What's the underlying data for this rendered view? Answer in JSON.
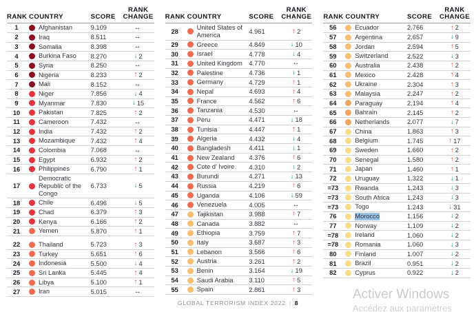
{
  "table": {
    "headers": {
      "rank": "RANK",
      "country": "COUNTRY",
      "score": "SCORE",
      "rank_change": "RANK CHANGE"
    }
  },
  "arrows": {
    "up": {
      "glyph": "↑",
      "color": "#e8392f"
    },
    "down": {
      "glyph": "↓",
      "color": "#00857c"
    },
    "same": {
      "glyph": "↔",
      "color": "#1a1a1a"
    }
  },
  "colors": {
    "tiers": {
      "t1": "#8a0e22",
      "t2": "#e43440",
      "t3": "#ef6a4f",
      "t4": "#f6be72",
      "t5": "#f0a55f",
      "t6": "#f8dd86"
    },
    "selection": "#9cc3e5"
  },
  "columns": [
    {
      "rows": [
        {
          "rank": "1",
          "country": "Afghanistan",
          "score": "9.109",
          "dir": "same",
          "change": "",
          "tier": "t1"
        },
        {
          "rank": "2",
          "country": "Iraq",
          "score": "8.511",
          "dir": "same",
          "change": "",
          "tier": "t1"
        },
        {
          "rank": "3",
          "country": "Somalia",
          "score": "8.398",
          "dir": "same",
          "change": "",
          "tier": "t1"
        },
        {
          "rank": "4",
          "country": "Burkina Faso",
          "score": "8.270",
          "dir": "down",
          "change": "2",
          "tier": "t1"
        },
        {
          "rank": "5",
          "country": "Syria",
          "score": "8.250",
          "dir": "same",
          "change": "",
          "tier": "t1"
        },
        {
          "rank": "6",
          "country": "Nigeria",
          "score": "8.233",
          "dir": "up",
          "change": "2",
          "tier": "t1"
        },
        {
          "rank": "7",
          "country": "Mali",
          "score": "8.152",
          "dir": "same",
          "change": "",
          "tier": "t1"
        },
        {
          "rank": "8",
          "country": "Niger",
          "score": "7.856",
          "dir": "down",
          "change": "4",
          "tier": "t2"
        },
        {
          "rank": "9",
          "country": "Myanmar",
          "score": "7.830",
          "dir": "down",
          "change": "15",
          "tier": "t2"
        },
        {
          "rank": "10",
          "country": "Pakistan",
          "score": "7.825",
          "dir": "up",
          "change": "2",
          "tier": "t2"
        },
        {
          "rank": "11",
          "country": "Cameroon",
          "score": "7.432",
          "dir": "same",
          "change": "",
          "tier": "t2"
        },
        {
          "rank": "12",
          "country": "India",
          "score": "7.432",
          "dir": "up",
          "change": "2",
          "tier": "t2"
        },
        {
          "rank": "13",
          "country": "Mozambique",
          "score": "7.432",
          "dir": "up",
          "change": "4",
          "tier": "t2"
        },
        {
          "rank": "14",
          "country": "Colombia",
          "score": "7.068",
          "dir": "same",
          "change": "",
          "tier": "t2"
        },
        {
          "rank": "15",
          "country": "Egypt",
          "score": "6.932",
          "dir": "up",
          "change": "2",
          "tier": "t2"
        },
        {
          "rank": "16",
          "country": "Philippines",
          "score": "6.790",
          "dir": "up",
          "change": "1",
          "tier": "t2"
        },
        {
          "rank": "17",
          "country": "Democratic Republic of the Congo",
          "score": "6.733",
          "dir": "down",
          "change": "5",
          "tier": "t2"
        },
        {
          "rank": "18",
          "country": "Chile",
          "score": "6.496",
          "dir": "down",
          "change": "5",
          "tier": "t2"
        },
        {
          "rank": "19",
          "country": "Chad",
          "score": "6.379",
          "dir": "up",
          "change": "3",
          "tier": "t2"
        },
        {
          "rank": "20",
          "country": "Kenya",
          "score": "6.166",
          "dir": "up",
          "change": "2",
          "tier": "t2"
        },
        {
          "rank": "21",
          "country": "Yemen",
          "score": "5.870",
          "dir": "up",
          "change": "1",
          "tier": "t3"
        },
        {
          "rank": "22",
          "country": "Thailand",
          "score": "5.723",
          "dir": "up",
          "change": "3",
          "tier": "t3",
          "gap": true
        },
        {
          "rank": "23",
          "country": "Turkey",
          "score": "5.651",
          "dir": "up",
          "change": "6",
          "tier": "t3"
        },
        {
          "rank": "24",
          "country": "Indonesia",
          "score": "5.500",
          "dir": "down",
          "change": "4",
          "tier": "t3"
        },
        {
          "rank": "25",
          "country": "Sri Lanka",
          "score": "5.445",
          "dir": "up",
          "change": "4",
          "tier": "t3"
        },
        {
          "rank": "26",
          "country": "Libya",
          "score": "5.100",
          "dir": "up",
          "change": "1",
          "tier": "t3"
        },
        {
          "rank": "27",
          "country": "Iran",
          "score": "5.015",
          "dir": "same",
          "change": "",
          "tier": "t3"
        }
      ]
    },
    {
      "rows": [
        {
          "rank": "28",
          "country": "United States of America",
          "score": "4.961",
          "dir": "up",
          "change": "2",
          "tier": "t3"
        },
        {
          "rank": "29",
          "country": "Greece",
          "score": "4.849",
          "dir": "down",
          "change": "10",
          "tier": "t3"
        },
        {
          "rank": "30",
          "country": "Israel",
          "score": "4.778",
          "dir": "down",
          "change": "4",
          "tier": "t3"
        },
        {
          "rank": "31",
          "country": "United Kingdom",
          "score": "4.770",
          "dir": "same",
          "change": "",
          "tier": "t3"
        },
        {
          "rank": "32",
          "country": "Palestine",
          "score": "4.736",
          "dir": "down",
          "change": "1",
          "tier": "t3"
        },
        {
          "rank": "33",
          "country": "Germany",
          "score": "4.729",
          "dir": "up",
          "change": "1",
          "tier": "t3"
        },
        {
          "rank": "34",
          "country": "Nepal",
          "score": "4.693",
          "dir": "up",
          "change": "4",
          "tier": "t3"
        },
        {
          "rank": "35",
          "country": "France",
          "score": "4.562",
          "dir": "up",
          "change": "6",
          "tier": "t3"
        },
        {
          "rank": "36",
          "country": "Tanzania",
          "score": "4.530",
          "dir": "same",
          "change": "",
          "tier": "t3"
        },
        {
          "rank": "37",
          "country": "Peru",
          "score": "4.471",
          "dir": "down",
          "change": "18",
          "tier": "t3"
        },
        {
          "rank": "38",
          "country": "Tunisia",
          "score": "4.447",
          "dir": "up",
          "change": "1",
          "tier": "t3"
        },
        {
          "rank": "39",
          "country": "Algeria",
          "score": "4.432",
          "dir": "down",
          "change": "4",
          "tier": "t3"
        },
        {
          "rank": "40",
          "country": "Bangladesh",
          "score": "4.411",
          "dir": "down",
          "change": "1",
          "tier": "t3"
        },
        {
          "rank": "41",
          "country": "New Zealand",
          "score": "4.376",
          "dir": "up",
          "change": "6",
          "tier": "t3"
        },
        {
          "rank": "42",
          "country": "Cote d' Ivoire",
          "score": "4.310",
          "dir": "down",
          "change": "2",
          "tier": "t3"
        },
        {
          "rank": "43",
          "country": "Burundi",
          "score": "4.271",
          "dir": "down",
          "change": "13",
          "tier": "t3"
        },
        {
          "rank": "44",
          "country": "Russia",
          "score": "4.219",
          "dir": "up",
          "change": "6",
          "tier": "t3"
        },
        {
          "rank": "45",
          "country": "Uganda",
          "score": "4.106",
          "dir": "down",
          "change": "59",
          "tier": "t3"
        },
        {
          "rank": "46",
          "country": "Venezuela",
          "score": "4.005",
          "dir": "same",
          "change": "",
          "tier": "t3"
        },
        {
          "rank": "47",
          "country": "Tajikistan",
          "score": "3.988",
          "dir": "up",
          "change": "7",
          "tier": "t4"
        },
        {
          "rank": "48",
          "country": "Canada",
          "score": "3.882",
          "dir": "same",
          "change": "",
          "tier": "t4"
        },
        {
          "rank": "49",
          "country": "Ethiopia",
          "score": "3.759",
          "dir": "up",
          "change": "7",
          "tier": "t4"
        },
        {
          "rank": "50",
          "country": "Italy",
          "score": "3.687",
          "dir": "up",
          "change": "3",
          "tier": "t4"
        },
        {
          "rank": "51",
          "country": "Lebanon",
          "score": "3.566",
          "dir": "up",
          "change": "6",
          "tier": "t4"
        },
        {
          "rank": "52",
          "country": "Austria",
          "score": "3.261",
          "dir": "up",
          "change": "2",
          "tier": "t4"
        },
        {
          "rank": "53",
          "country": "Benin",
          "score": "3.164",
          "dir": "down",
          "change": "19",
          "tier": "t4"
        },
        {
          "rank": "54",
          "country": "Saudi Arabia",
          "score": "3.110",
          "dir": "up",
          "change": "5",
          "tier": "t4"
        },
        {
          "rank": "55",
          "country": "Spain",
          "score": "2.861",
          "dir": "up",
          "change": "3",
          "tier": "t4"
        }
      ]
    },
    {
      "rows": [
        {
          "rank": "56",
          "country": "Ecuador",
          "score": "2.766",
          "dir": "up",
          "change": "2",
          "tier": "t4"
        },
        {
          "rank": "57",
          "country": "Argentina",
          "score": "2.657",
          "dir": "down",
          "change": "9",
          "tier": "t4"
        },
        {
          "rank": "58",
          "country": "Jordan",
          "score": "2.594",
          "dir": "up",
          "change": "5",
          "tier": "t4"
        },
        {
          "rank": "59",
          "country": "Switzerland",
          "score": "2.522",
          "dir": "down",
          "change": "3",
          "tier": "t4"
        },
        {
          "rank": "60",
          "country": "Australia",
          "score": "2.438",
          "dir": "up",
          "change": "2",
          "tier": "t4"
        },
        {
          "rank": "61",
          "country": "Mexico",
          "score": "2.428",
          "dir": "up",
          "change": "4",
          "tier": "t4"
        },
        {
          "rank": "62",
          "country": "Ukraine",
          "score": "2.304",
          "dir": "up",
          "change": "3",
          "tier": "t4"
        },
        {
          "rank": "63",
          "country": "Malaysia",
          "score": "2.247",
          "dir": "up",
          "change": "2",
          "tier": "t4"
        },
        {
          "rank": "64",
          "country": "Paraguay",
          "score": "2.194",
          "dir": "up",
          "change": "4",
          "tier": "t5"
        },
        {
          "rank": "65",
          "country": "Bahrain",
          "score": "2.145",
          "dir": "up",
          "change": "2",
          "tier": "t5"
        },
        {
          "rank": "66",
          "country": "Netherlands",
          "score": "2.077",
          "dir": "down",
          "change": "7",
          "tier": "t5"
        },
        {
          "rank": "67",
          "country": "China",
          "score": "1.863",
          "dir": "up",
          "change": "3",
          "tier": "t6"
        },
        {
          "rank": "68",
          "country": "Belgium",
          "score": "1.745",
          "dir": "up",
          "change": "17",
          "tier": "t6"
        },
        {
          "rank": "69",
          "country": "Sweden",
          "score": "1.660",
          "dir": "up",
          "change": "2",
          "tier": "t6"
        },
        {
          "rank": "70",
          "country": "Senegal",
          "score": "1.580",
          "dir": "up",
          "change": "2",
          "tier": "t6"
        },
        {
          "rank": "71",
          "country": "Japan",
          "score": "1.460",
          "dir": "up",
          "change": "1",
          "tier": "t6"
        },
        {
          "rank": "72",
          "country": "Uruguay",
          "score": "1.322",
          "dir": "down",
          "change": "1",
          "tier": "t6"
        },
        {
          "rank": "=73",
          "country": "Rwanda",
          "score": "1.243",
          "dir": "down",
          "change": "3",
          "tier": "t6"
        },
        {
          "rank": "=73",
          "country": "South Africa",
          "score": "1.243",
          "dir": "down",
          "change": "3",
          "tier": "t6"
        },
        {
          "rank": "=73",
          "country": "Togo",
          "score": "1.243",
          "dir": "down",
          "change": "31",
          "tier": "t6"
        },
        {
          "rank": "76",
          "country": "Morocco",
          "score": "1.156",
          "dir": "down",
          "change": "2",
          "tier": "t6",
          "highlight": true
        },
        {
          "rank": "77",
          "country": "Norway",
          "score": "1.109",
          "dir": "down",
          "change": "2",
          "tier": "t6"
        },
        {
          "rank": "=78",
          "country": "Ireland",
          "score": "1.060",
          "dir": "down",
          "change": "2",
          "tier": "t6"
        },
        {
          "rank": "=78",
          "country": "Romania",
          "score": "1.060",
          "dir": "down",
          "change": "3",
          "tier": "t6"
        },
        {
          "rank": "80",
          "country": "Finland",
          "score": "1.007",
          "dir": "down",
          "change": "2",
          "tier": "t6"
        },
        {
          "rank": "81",
          "country": "Brazil",
          "score": "0.951",
          "dir": "down",
          "change": "2",
          "tier": "t6"
        },
        {
          "rank": "82",
          "country": "Cyprus",
          "score": "0.922",
          "dir": "down",
          "change": "2",
          "tier": "t6"
        }
      ]
    }
  ],
  "footer": {
    "label": "GLOBAL TERRORISM INDEX 2022",
    "divider": "|",
    "page": "8"
  },
  "watermark": {
    "line1": "Activer Windows",
    "line2": "Accédez aux paramètres"
  }
}
